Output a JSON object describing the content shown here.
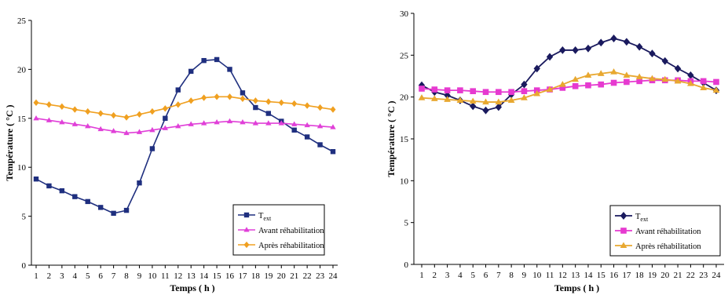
{
  "chart_data": [
    {
      "type": "line",
      "xlabel": "Temps ( h )",
      "ylabel": "Température ( °C )",
      "ylim": [
        0,
        25
      ],
      "yticks": [
        0,
        5,
        10,
        15,
        20,
        25
      ],
      "x": [
        1,
        2,
        3,
        4,
        5,
        6,
        7,
        8,
        9,
        10,
        11,
        12,
        13,
        14,
        15,
        16,
        17,
        18,
        19,
        20,
        21,
        22,
        23,
        24
      ],
      "legend_position": "bottom-right",
      "series": [
        {
          "name": "Text",
          "name_main": "T",
          "name_sub": "ext",
          "color": "#1f2f7f",
          "marker": "square",
          "values": [
            8.8,
            8.1,
            7.6,
            7.0,
            6.5,
            5.9,
            5.3,
            5.6,
            8.4,
            11.9,
            15.0,
            17.9,
            19.8,
            20.9,
            21.0,
            20.0,
            17.6,
            16.1,
            15.5,
            14.7,
            13.8,
            13.1,
            12.3,
            11.6
          ]
        },
        {
          "name": "Avant réhabilitation",
          "color": "#e040d8",
          "marker": "triangle",
          "values": [
            15.0,
            14.8,
            14.6,
            14.4,
            14.2,
            13.9,
            13.7,
            13.5,
            13.6,
            13.8,
            14.0,
            14.2,
            14.4,
            14.5,
            14.6,
            14.7,
            14.6,
            14.5,
            14.5,
            14.5,
            14.4,
            14.3,
            14.2,
            14.1
          ]
        },
        {
          "name": "Après réhabilitation",
          "color": "#f0a020",
          "marker": "diamond",
          "values": [
            16.6,
            16.4,
            16.2,
            15.9,
            15.7,
            15.5,
            15.3,
            15.1,
            15.4,
            15.7,
            16.0,
            16.4,
            16.8,
            17.1,
            17.2,
            17.2,
            17.0,
            16.8,
            16.7,
            16.6,
            16.5,
            16.3,
            16.1,
            15.9
          ]
        }
      ]
    },
    {
      "type": "line",
      "xlabel": "Temps ( h )",
      "ylabel": "Température ( °C )",
      "ylim": [
        0,
        30
      ],
      "yticks": [
        0,
        5,
        10,
        15,
        20,
        25,
        30
      ],
      "x": [
        1,
        2,
        3,
        4,
        5,
        6,
        7,
        8,
        9,
        10,
        11,
        12,
        13,
        14,
        15,
        16,
        17,
        18,
        19,
        20,
        21,
        22,
        23,
        24
      ],
      "legend_position": "bottom-right",
      "series": [
        {
          "name": "Text",
          "name_main": "T",
          "name_sub": "ext",
          "color": "#1a1a5e",
          "marker": "diamond",
          "values": [
            21.4,
            20.6,
            20.2,
            19.6,
            18.9,
            18.4,
            18.8,
            20.3,
            21.5,
            23.4,
            24.8,
            25.6,
            25.6,
            25.8,
            26.5,
            27.0,
            26.6,
            26.0,
            25.2,
            24.3,
            23.4,
            22.6,
            21.7,
            20.8
          ]
        },
        {
          "name": "Avant réhabilitation",
          "color": "#e63ad0",
          "marker": "square",
          "values": [
            21.0,
            20.9,
            20.8,
            20.8,
            20.7,
            20.6,
            20.6,
            20.6,
            20.7,
            20.8,
            20.9,
            21.1,
            21.3,
            21.4,
            21.5,
            21.7,
            21.8,
            21.9,
            22.0,
            22.0,
            22.0,
            21.9,
            21.9,
            21.8
          ]
        },
        {
          "name": "Après réhabilitation",
          "color": "#e8a830",
          "marker": "triangle",
          "values": [
            19.9,
            19.8,
            19.7,
            19.6,
            19.5,
            19.4,
            19.4,
            19.6,
            19.9,
            20.4,
            20.9,
            21.5,
            22.1,
            22.6,
            22.8,
            23.0,
            22.6,
            22.4,
            22.2,
            22.1,
            21.9,
            21.6,
            21.1,
            20.8
          ]
        }
      ]
    }
  ]
}
